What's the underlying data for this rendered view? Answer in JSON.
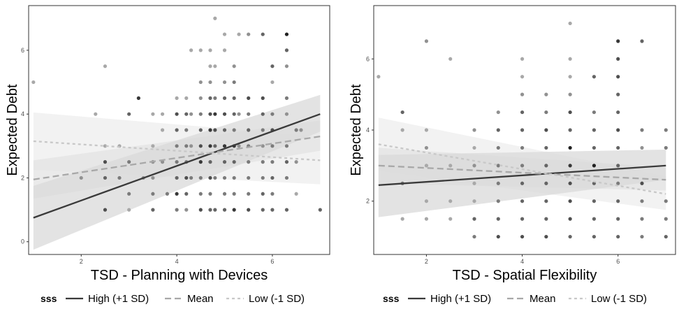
{
  "chart_data": [
    {
      "type": "scatter",
      "xlabel": "TSD - Planning with Devices",
      "ylabel": "Expected Debt",
      "xlim": [
        0.9,
        7.2
      ],
      "ylim": [
        -0.4,
        7.4
      ],
      "x_ticks": [
        "2",
        "4",
        "6"
      ],
      "y_ticks": [
        "0",
        "2",
        "4",
        "6"
      ],
      "grid": false,
      "legend_title": "sss",
      "series": [
        {
          "name": "High (+1 SD)",
          "line_style": "solid",
          "color": "#3a3a3a",
          "x": [
            1.0,
            7.0
          ],
          "y": [
            0.75,
            4.0
          ],
          "ci_lower": [
            -0.25,
            3.45
          ],
          "ci_upper": [
            1.75,
            4.6
          ]
        },
        {
          "name": "Mean",
          "line_style": "dashed",
          "color": "#a8a8a8",
          "x": [
            1.0,
            7.0
          ],
          "y": [
            1.95,
            3.3
          ],
          "ci_lower": [
            1.35,
            2.85
          ],
          "ci_upper": [
            2.55,
            3.8
          ]
        },
        {
          "name": "Low (-1 SD)",
          "line_style": "dotted",
          "color": "#c8c8c8",
          "x": [
            1.0,
            7.0
          ],
          "y": [
            3.15,
            2.55
          ],
          "ci_lower": [
            2.25,
            1.8
          ],
          "ci_upper": [
            4.05,
            3.3
          ]
        }
      ],
      "points": [
        [
          1.0,
          5.0,
          0.3
        ],
        [
          2.0,
          2.0,
          0.4
        ],
        [
          2.3,
          4.0,
          0.3
        ],
        [
          2.5,
          2.5,
          0.7
        ],
        [
          2.5,
          1.0,
          0.7
        ],
        [
          2.5,
          2.0,
          0.6
        ],
        [
          2.5,
          3.0,
          0.3
        ],
        [
          2.5,
          5.5,
          0.3
        ],
        [
          2.8,
          2.0,
          0.5
        ],
        [
          2.8,
          3.0,
          0.3
        ],
        [
          3.0,
          1.5,
          0.5
        ],
        [
          3.0,
          2.5,
          0.5
        ],
        [
          3.0,
          4.0,
          0.6
        ],
        [
          3.0,
          1.0,
          0.3
        ],
        [
          3.2,
          4.5,
          0.8
        ],
        [
          3.3,
          2.0,
          0.4
        ],
        [
          3.5,
          1.0,
          0.6
        ],
        [
          3.5,
          1.5,
          0.5
        ],
        [
          3.5,
          2.0,
          0.4
        ],
        [
          3.5,
          3.0,
          0.3
        ],
        [
          3.5,
          4.0,
          0.3
        ],
        [
          3.5,
          2.5,
          0.4
        ],
        [
          3.7,
          2.5,
          0.4
        ],
        [
          3.7,
          3.5,
          0.3
        ],
        [
          3.7,
          4.0,
          0.3
        ],
        [
          3.8,
          1.5,
          0.5
        ],
        [
          4.0,
          1.0,
          0.5
        ],
        [
          4.0,
          1.5,
          0.8
        ],
        [
          4.0,
          2.0,
          0.6
        ],
        [
          4.0,
          2.5,
          0.5
        ],
        [
          4.0,
          3.0,
          0.5
        ],
        [
          4.0,
          3.5,
          0.6
        ],
        [
          4.0,
          4.0,
          0.7
        ],
        [
          4.0,
          4.5,
          0.3
        ],
        [
          4.2,
          1.0,
          0.4
        ],
        [
          4.2,
          1.5,
          0.6
        ],
        [
          4.2,
          2.0,
          0.7
        ],
        [
          4.2,
          2.5,
          0.5
        ],
        [
          4.2,
          3.0,
          0.5
        ],
        [
          4.2,
          3.5,
          0.5
        ],
        [
          4.2,
          4.0,
          0.6
        ],
        [
          4.2,
          4.5,
          0.3
        ],
        [
          4.3,
          2.0,
          0.5
        ],
        [
          4.3,
          3.0,
          0.4
        ],
        [
          4.3,
          4.0,
          0.4
        ],
        [
          4.3,
          6.0,
          0.3
        ],
        [
          4.5,
          1.0,
          0.7
        ],
        [
          4.5,
          1.5,
          0.5
        ],
        [
          4.5,
          2.0,
          0.5
        ],
        [
          4.5,
          2.5,
          0.8
        ],
        [
          4.5,
          3.0,
          0.7
        ],
        [
          4.5,
          3.5,
          0.6
        ],
        [
          4.5,
          4.0,
          0.5
        ],
        [
          4.5,
          4.5,
          0.4
        ],
        [
          4.5,
          5.0,
          0.4
        ],
        [
          4.5,
          6.0,
          0.3
        ],
        [
          4.7,
          1.0,
          0.6
        ],
        [
          4.7,
          1.5,
          0.5
        ],
        [
          4.7,
          2.0,
          0.7
        ],
        [
          4.7,
          2.5,
          0.6
        ],
        [
          4.7,
          3.0,
          0.8
        ],
        [
          4.7,
          3.5,
          0.8
        ],
        [
          4.7,
          4.0,
          0.7
        ],
        [
          4.7,
          4.5,
          0.6
        ],
        [
          4.7,
          5.0,
          0.4
        ],
        [
          4.7,
          5.5,
          0.3
        ],
        [
          4.7,
          6.0,
          0.3
        ],
        [
          4.8,
          1.0,
          0.6
        ],
        [
          4.8,
          2.0,
          0.5
        ],
        [
          4.8,
          3.0,
          0.6
        ],
        [
          4.8,
          3.5,
          0.7
        ],
        [
          4.8,
          4.0,
          0.8
        ],
        [
          4.8,
          4.5,
          0.5
        ],
        [
          4.8,
          5.5,
          0.3
        ],
        [
          4.8,
          7.0,
          0.3
        ],
        [
          5.0,
          1.0,
          0.6
        ],
        [
          5.0,
          1.5,
          0.5
        ],
        [
          5.0,
          2.0,
          0.5
        ],
        [
          5.0,
          2.5,
          0.6
        ],
        [
          5.0,
          3.0,
          0.8
        ],
        [
          5.0,
          3.5,
          0.6
        ],
        [
          5.0,
          4.0,
          0.7
        ],
        [
          5.0,
          4.5,
          0.6
        ],
        [
          5.0,
          5.0,
          0.4
        ],
        [
          5.0,
          6.0,
          0.3
        ],
        [
          5.0,
          6.5,
          0.3
        ],
        [
          5.2,
          1.0,
          0.8
        ],
        [
          5.2,
          1.5,
          0.5
        ],
        [
          5.2,
          2.0,
          0.5
        ],
        [
          5.2,
          2.5,
          0.6
        ],
        [
          5.2,
          3.0,
          0.8
        ],
        [
          5.2,
          3.5,
          0.5
        ],
        [
          5.2,
          4.0,
          0.6
        ],
        [
          5.2,
          4.5,
          0.6
        ],
        [
          5.2,
          5.0,
          0.5
        ],
        [
          5.2,
          5.5,
          0.4
        ],
        [
          5.3,
          3.0,
          0.4
        ],
        [
          5.3,
          4.0,
          0.4
        ],
        [
          5.3,
          6.5,
          0.3
        ],
        [
          5.5,
          1.0,
          0.7
        ],
        [
          5.5,
          1.5,
          0.5
        ],
        [
          5.5,
          2.0,
          0.5
        ],
        [
          5.5,
          2.5,
          0.5
        ],
        [
          5.5,
          3.0,
          0.5
        ],
        [
          5.5,
          3.5,
          0.6
        ],
        [
          5.5,
          4.0,
          0.5
        ],
        [
          5.5,
          4.5,
          0.7
        ],
        [
          5.5,
          6.5,
          0.4
        ],
        [
          5.8,
          1.0,
          0.6
        ],
        [
          5.8,
          1.5,
          0.6
        ],
        [
          5.8,
          2.0,
          0.5
        ],
        [
          5.8,
          2.5,
          0.5
        ],
        [
          5.8,
          3.0,
          0.4
        ],
        [
          5.8,
          3.5,
          0.5
        ],
        [
          5.8,
          4.0,
          0.6
        ],
        [
          5.8,
          4.5,
          0.7
        ],
        [
          5.8,
          6.5,
          0.6
        ],
        [
          6.0,
          1.0,
          0.6
        ],
        [
          6.0,
          1.5,
          0.5
        ],
        [
          6.0,
          2.0,
          0.6
        ],
        [
          6.0,
          2.5,
          0.5
        ],
        [
          6.0,
          3.0,
          0.5
        ],
        [
          6.0,
          3.5,
          0.7
        ],
        [
          6.0,
          4.0,
          0.5
        ],
        [
          6.0,
          5.0,
          0.3
        ],
        [
          6.0,
          5.5,
          0.6
        ],
        [
          6.3,
          1.0,
          0.6
        ],
        [
          6.3,
          2.0,
          0.5
        ],
        [
          6.3,
          2.5,
          0.6
        ],
        [
          6.3,
          3.0,
          0.5
        ],
        [
          6.3,
          4.0,
          0.4
        ],
        [
          6.3,
          4.5,
          0.5
        ],
        [
          6.3,
          5.5,
          0.4
        ],
        [
          6.3,
          6.0,
          0.6
        ],
        [
          6.3,
          6.5,
          0.9
        ],
        [
          6.5,
          3.5,
          0.5
        ],
        [
          6.5,
          1.5,
          0.3
        ],
        [
          6.5,
          2.5,
          0.4
        ],
        [
          7.0,
          1.0,
          0.6
        ],
        [
          6.6,
          3.5,
          0.4
        ]
      ]
    },
    {
      "type": "scatter",
      "xlabel": "TSD - Spatial Flexibility",
      "ylabel": "Expected Debt",
      "xlim": [
        0.9,
        7.2
      ],
      "ylim": [
        0.5,
        7.5
      ],
      "x_ticks": [
        "2",
        "4",
        "6"
      ],
      "y_ticks": [
        "2",
        "4",
        "6"
      ],
      "grid": false,
      "legend_title": "sss",
      "series": [
        {
          "name": "High (+1 SD)",
          "line_style": "solid",
          "color": "#3a3a3a",
          "x": [
            1.0,
            7.0
          ],
          "y": [
            2.45,
            3.0
          ],
          "ci_lower": [
            1.55,
            2.6
          ],
          "ci_upper": [
            3.3,
            3.45
          ]
        },
        {
          "name": "Mean",
          "line_style": "dashed",
          "color": "#a8a8a8",
          "x": [
            1.0,
            7.0
          ],
          "y": [
            3.0,
            2.6
          ],
          "ci_lower": [
            2.5,
            2.3
          ],
          "ci_upper": [
            3.5,
            2.95
          ]
        },
        {
          "name": "Low (-1 SD)",
          "line_style": "dotted",
          "color": "#c8c8c8",
          "x": [
            1.0,
            7.0
          ],
          "y": [
            3.6,
            2.2
          ],
          "ci_lower": [
            2.85,
            1.75
          ],
          "ci_upper": [
            4.35,
            2.7
          ]
        }
      ],
      "points": [
        [
          1.0,
          5.5,
          0.3
        ],
        [
          1.5,
          4.5,
          0.6
        ],
        [
          1.5,
          4.0,
          0.3
        ],
        [
          1.5,
          2.5,
          0.5
        ],
        [
          1.5,
          1.5,
          0.3
        ],
        [
          2.0,
          6.5,
          0.4
        ],
        [
          2.0,
          4.0,
          0.3
        ],
        [
          2.0,
          3.5,
          0.4
        ],
        [
          2.0,
          3.0,
          0.3
        ],
        [
          2.0,
          2.0,
          0.3
        ],
        [
          2.0,
          1.5,
          0.3
        ],
        [
          2.5,
          6.0,
          0.3
        ],
        [
          2.5,
          3.0,
          0.3
        ],
        [
          2.5,
          2.0,
          0.3
        ],
        [
          2.5,
          1.5,
          0.3
        ],
        [
          3.0,
          4.0,
          0.4
        ],
        [
          3.0,
          3.5,
          0.3
        ],
        [
          3.0,
          3.0,
          0.4
        ],
        [
          3.0,
          2.5,
          0.3
        ],
        [
          3.0,
          2.0,
          0.3
        ],
        [
          3.0,
          1.5,
          0.6
        ],
        [
          3.0,
          1.0,
          0.5
        ],
        [
          3.5,
          4.5,
          0.4
        ],
        [
          3.5,
          4.0,
          0.6
        ],
        [
          3.5,
          3.5,
          0.5
        ],
        [
          3.5,
          3.0,
          0.5
        ],
        [
          3.5,
          2.5,
          0.5
        ],
        [
          3.5,
          2.0,
          0.5
        ],
        [
          3.5,
          1.5,
          0.6
        ],
        [
          3.5,
          1.0,
          0.7
        ],
        [
          4.0,
          6.0,
          0.3
        ],
        [
          4.0,
          5.5,
          0.3
        ],
        [
          4.0,
          5.0,
          0.4
        ],
        [
          4.0,
          4.5,
          0.6
        ],
        [
          4.0,
          4.0,
          0.6
        ],
        [
          4.0,
          3.5,
          0.5
        ],
        [
          4.0,
          3.0,
          0.5
        ],
        [
          4.0,
          2.5,
          0.6
        ],
        [
          4.0,
          2.0,
          0.6
        ],
        [
          4.0,
          1.5,
          0.6
        ],
        [
          4.0,
          1.0,
          0.7
        ],
        [
          4.5,
          5.0,
          0.4
        ],
        [
          4.5,
          4.5,
          0.5
        ],
        [
          4.5,
          4.0,
          0.7
        ],
        [
          4.5,
          3.5,
          0.6
        ],
        [
          4.5,
          3.0,
          0.6
        ],
        [
          4.5,
          2.5,
          0.6
        ],
        [
          4.5,
          2.0,
          0.6
        ],
        [
          4.5,
          1.5,
          0.6
        ],
        [
          4.5,
          1.0,
          0.7
        ],
        [
          5.0,
          7.0,
          0.3
        ],
        [
          5.0,
          6.0,
          0.3
        ],
        [
          5.0,
          5.5,
          0.3
        ],
        [
          5.0,
          5.0,
          0.4
        ],
        [
          5.0,
          4.5,
          0.7
        ],
        [
          5.0,
          4.0,
          0.6
        ],
        [
          5.0,
          3.5,
          0.9
        ],
        [
          5.0,
          3.0,
          0.8
        ],
        [
          5.0,
          2.5,
          0.7
        ],
        [
          5.0,
          2.0,
          0.7
        ],
        [
          5.0,
          1.5,
          0.7
        ],
        [
          5.0,
          1.0,
          0.6
        ],
        [
          5.5,
          5.5,
          0.6
        ],
        [
          5.5,
          4.5,
          0.5
        ],
        [
          5.5,
          4.0,
          0.6
        ],
        [
          5.5,
          3.5,
          0.6
        ],
        [
          5.5,
          3.0,
          0.9
        ],
        [
          5.5,
          2.5,
          0.6
        ],
        [
          5.5,
          2.0,
          0.6
        ],
        [
          5.5,
          1.5,
          0.6
        ],
        [
          5.5,
          1.0,
          0.6
        ],
        [
          6.0,
          6.5,
          0.8
        ],
        [
          6.0,
          6.0,
          0.7
        ],
        [
          6.0,
          5.5,
          0.7
        ],
        [
          6.0,
          5.0,
          0.6
        ],
        [
          6.0,
          4.5,
          0.6
        ],
        [
          6.0,
          4.0,
          0.7
        ],
        [
          6.0,
          3.5,
          0.6
        ],
        [
          6.0,
          3.0,
          0.6
        ],
        [
          6.0,
          2.5,
          0.5
        ],
        [
          6.0,
          2.0,
          0.6
        ],
        [
          6.0,
          1.5,
          0.6
        ],
        [
          6.0,
          1.0,
          0.6
        ],
        [
          6.5,
          6.5,
          0.6
        ],
        [
          6.5,
          4.0,
          0.5
        ],
        [
          6.5,
          3.5,
          0.4
        ],
        [
          6.5,
          2.5,
          0.7
        ],
        [
          6.5,
          2.0,
          0.5
        ],
        [
          6.5,
          1.5,
          0.5
        ],
        [
          6.5,
          1.0,
          0.5
        ],
        [
          7.0,
          4.0,
          0.5
        ],
        [
          7.0,
          3.5,
          0.5
        ],
        [
          7.0,
          2.0,
          0.5
        ],
        [
          7.0,
          1.5,
          0.5
        ],
        [
          7.0,
          1.0,
          0.6
        ]
      ]
    }
  ]
}
